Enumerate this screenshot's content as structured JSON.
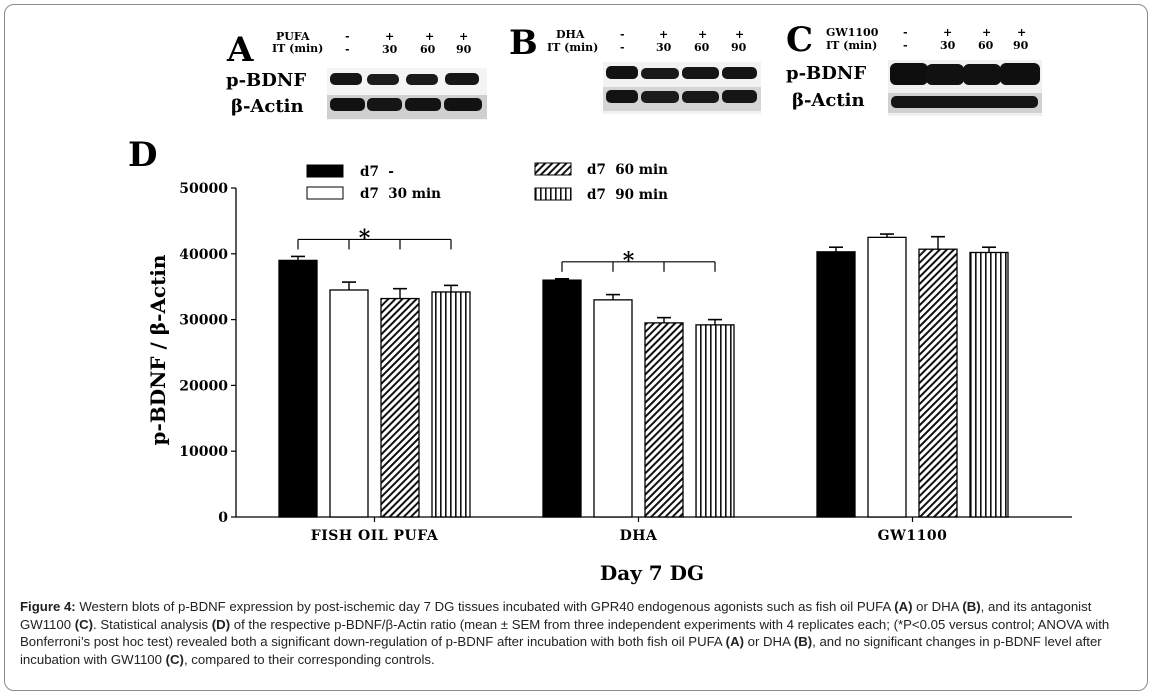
{
  "blots": {
    "a": {
      "panel_label": "A",
      "row1_label": "PUFA",
      "row2_label": "IT (min)",
      "row1_values": [
        "-",
        "+",
        "+",
        "+"
      ],
      "row2_values": [
        "-",
        "30",
        "60",
        "90"
      ],
      "band1_label": "p-BDNF",
      "band2_label": "β-Actin"
    },
    "b": {
      "panel_label": "B",
      "row1_label": "DHA",
      "row2_label": "IT (min)",
      "row1_values": [
        "-",
        "+",
        "+",
        "+"
      ],
      "row2_values": [
        "-",
        "30",
        "60",
        "90"
      ]
    },
    "c": {
      "panel_label": "C",
      "row1_label": "GW1100",
      "row2_label": "IT (min)",
      "row1_values": [
        "-",
        "+",
        "+",
        "+"
      ],
      "row2_values": [
        "-",
        "30",
        "60",
        "90"
      ],
      "band1_label": "p-BDNF",
      "band2_label": "β-Actin"
    }
  },
  "chart_data": {
    "type": "bar",
    "panel_label": "D",
    "title": "",
    "xlabel": "Day 7 DG",
    "ylabel": "p-BDNF / β-Actin",
    "ylim": [
      0,
      50000
    ],
    "yticks": [
      0,
      10000,
      20000,
      30000,
      40000,
      50000
    ],
    "yticklabels": [
      "0",
      "10000",
      "20000",
      "30000",
      "40000",
      "50000"
    ],
    "categories": [
      "FISH OIL PUFA",
      "DHA",
      "GW1100"
    ],
    "series": [
      {
        "name": "d7  -",
        "fill": "solid-black",
        "values": [
          39000,
          36000,
          40300
        ],
        "errors": [
          600,
          200,
          700
        ]
      },
      {
        "name": "d7  30 min",
        "fill": "white",
        "values": [
          34500,
          33000,
          42500
        ],
        "errors": [
          1200,
          800,
          500
        ]
      },
      {
        "name": "d7  60 min",
        "fill": "diagonal-hatch",
        "values": [
          33200,
          29500,
          40700
        ],
        "errors": [
          1500,
          800,
          1900
        ]
      },
      {
        "name": "d7  90 min",
        "fill": "vertical-stripes",
        "values": [
          34200,
          29200,
          40200
        ],
        "errors": [
          1000,
          800,
          800
        ]
      }
    ],
    "significance": [
      {
        "group": "FISH OIL PUFA",
        "label": "*"
      },
      {
        "group": "DHA",
        "label": "*"
      }
    ],
    "legend_position": "top"
  },
  "caption": {
    "figure_label": "Figure 4:",
    "segments": [
      {
        "t": " Western blots of p-BDNF expression by post-ischemic day 7 DG tissues incubated with GPR40 endogenous agonists such as fish oil PUFA ",
        "b": false
      },
      {
        "t": "(A)",
        "b": true
      },
      {
        "t": " or DHA ",
        "b": false
      },
      {
        "t": "(B)",
        "b": true
      },
      {
        "t": ", and its antagonist GW1100 ",
        "b": false
      },
      {
        "t": "(C)",
        "b": true
      },
      {
        "t": ". Statistical analysis ",
        "b": false
      },
      {
        "t": "(D)",
        "b": true
      },
      {
        "t": " of the respective p-BDNF/β-Actin ratio (mean ± SEM from three independent experiments with 4 replicates each; (*P<0.05 versus control; ANOVA with Bonferroni’s post hoc test) revealed both a significant down-regulation of p-BDNF after incubation with both fish oil PUFA ",
        "b": false
      },
      {
        "t": "(A)",
        "b": true
      },
      {
        "t": " or DHA ",
        "b": false
      },
      {
        "t": "(B)",
        "b": true
      },
      {
        "t": ", and no significant changes in p-BDNF level after incubation with GW1100 ",
        "b": false
      },
      {
        "t": "(C)",
        "b": true
      },
      {
        "t": ", compared to their corresponding controls.",
        "b": false
      }
    ]
  }
}
